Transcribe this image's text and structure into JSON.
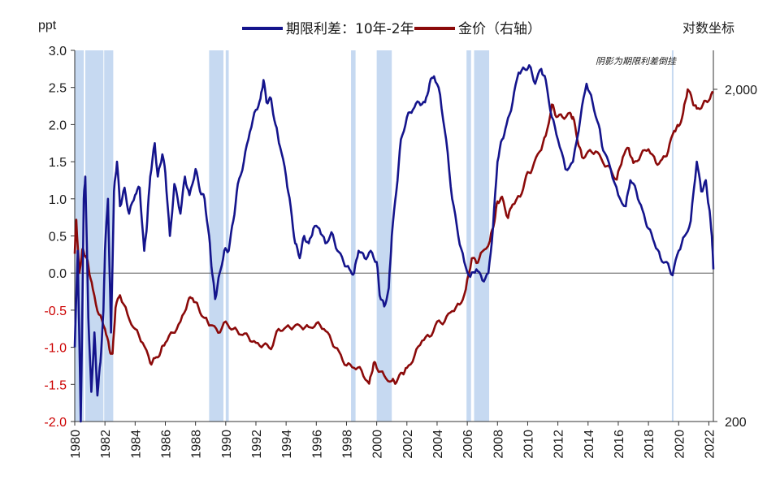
{
  "chart_data": {
    "type": "line",
    "title": "",
    "left_axis_unit": "ppt",
    "right_axis_unit": "对数坐标",
    "annotation": "阴影为期限利差倒挂",
    "xlim": [
      1980,
      2022.3
    ],
    "x_ticks": [
      "1980",
      "1982",
      "1984",
      "1986",
      "1988",
      "1990",
      "1992",
      "1994",
      "1996",
      "1998",
      "2000",
      "2002",
      "2004",
      "2006",
      "2008",
      "2010",
      "2012",
      "2014",
      "2016",
      "2018",
      "2020",
      "2022"
    ],
    "y_left": {
      "ylim": [
        -2.0,
        3.0
      ],
      "ticks": [
        "3.0",
        "2.5",
        "2.0",
        "1.5",
        "1.0",
        "0.5",
        "0.0",
        "-0.5",
        "-1.0",
        "-1.5",
        "-2.0"
      ],
      "tick_values": [
        3.0,
        2.5,
        2.0,
        1.5,
        1.0,
        0.5,
        0.0,
        -0.5,
        -1.0,
        -1.5,
        -2.0
      ]
    },
    "y_right": {
      "scale": "log",
      "ylim": [
        200,
        2620
      ],
      "ticks": [
        "2,000",
        "200"
      ],
      "tick_values": [
        2000,
        200
      ]
    },
    "shaded_periods": [
      [
        1980.0,
        1980.6
      ],
      [
        1980.7,
        1981.9
      ],
      [
        1981.95,
        1982.55
      ],
      [
        1988.9,
        1989.85
      ],
      [
        1990.0,
        1990.2
      ],
      [
        1998.3,
        1998.6
      ],
      [
        2000.0,
        2001.0
      ],
      [
        2005.95,
        2006.25
      ],
      [
        2006.45,
        2007.45
      ],
      [
        2019.55,
        2019.65
      ]
    ],
    "colors": {
      "spread": "#14148c",
      "gold": "#8b0a0a",
      "shade": "#c6d9f1",
      "axis": "#333333",
      "neg_tick": "#cc0000"
    },
    "series": [
      {
        "name": "期限利差：10年-2年",
        "axis": "left",
        "points": [
          [
            1980.0,
            -1.0
          ],
          [
            1980.2,
            0.3
          ],
          [
            1980.4,
            -2.0
          ],
          [
            1980.6,
            1.0
          ],
          [
            1980.7,
            1.3
          ],
          [
            1980.9,
            -0.6
          ],
          [
            1981.1,
            -1.6
          ],
          [
            1981.3,
            -0.8
          ],
          [
            1981.5,
            -1.65
          ],
          [
            1981.7,
            -1.2
          ],
          [
            1981.9,
            -0.5
          ],
          [
            1982.0,
            0.3
          ],
          [
            1982.2,
            1.0
          ],
          [
            1982.4,
            -0.8
          ],
          [
            1982.6,
            1.1
          ],
          [
            1982.8,
            1.5
          ],
          [
            1983.0,
            0.9
          ],
          [
            1983.3,
            1.15
          ],
          [
            1983.6,
            0.8
          ],
          [
            1984.0,
            1.05
          ],
          [
            1984.3,
            1.15
          ],
          [
            1984.6,
            0.3
          ],
          [
            1984.8,
            0.7
          ],
          [
            1985.0,
            1.3
          ],
          [
            1985.3,
            1.75
          ],
          [
            1985.5,
            1.3
          ],
          [
            1985.8,
            1.6
          ],
          [
            1986.0,
            1.35
          ],
          [
            1986.3,
            0.5
          ],
          [
            1986.6,
            1.2
          ],
          [
            1987.0,
            0.8
          ],
          [
            1987.3,
            1.3
          ],
          [
            1987.6,
            1.05
          ],
          [
            1988.0,
            1.4
          ],
          [
            1988.3,
            1.1
          ],
          [
            1988.6,
            1.0
          ],
          [
            1988.9,
            0.5
          ],
          [
            1989.1,
            0.0
          ],
          [
            1989.3,
            -0.35
          ],
          [
            1989.6,
            0.0
          ],
          [
            1989.9,
            0.3
          ],
          [
            1990.2,
            0.3
          ],
          [
            1990.5,
            0.7
          ],
          [
            1990.8,
            1.2
          ],
          [
            1991.2,
            1.5
          ],
          [
            1991.6,
            1.9
          ],
          [
            1992.0,
            2.2
          ],
          [
            1992.3,
            2.35
          ],
          [
            1992.5,
            2.6
          ],
          [
            1992.7,
            2.3
          ],
          [
            1993.0,
            2.35
          ],
          [
            1993.3,
            2.0
          ],
          [
            1993.6,
            1.7
          ],
          [
            1994.0,
            1.3
          ],
          [
            1994.3,
            0.9
          ],
          [
            1994.6,
            0.4
          ],
          [
            1994.9,
            0.2
          ],
          [
            1995.2,
            0.5
          ],
          [
            1995.5,
            0.4
          ],
          [
            1995.8,
            0.6
          ],
          [
            1996.2,
            0.6
          ],
          [
            1996.6,
            0.4
          ],
          [
            1997.0,
            0.55
          ],
          [
            1997.4,
            0.3
          ],
          [
            1997.8,
            0.15
          ],
          [
            1998.2,
            0.05
          ],
          [
            1998.5,
            0.0
          ],
          [
            1998.8,
            0.3
          ],
          [
            1999.2,
            0.2
          ],
          [
            1999.6,
            0.3
          ],
          [
            2000.0,
            0.15
          ],
          [
            2000.2,
            -0.3
          ],
          [
            2000.5,
            -0.45
          ],
          [
            2000.8,
            -0.2
          ],
          [
            2001.0,
            0.5
          ],
          [
            2001.3,
            1.1
          ],
          [
            2001.6,
            1.8
          ],
          [
            2002.0,
            2.1
          ],
          [
            2002.4,
            2.2
          ],
          [
            2002.8,
            2.3
          ],
          [
            2003.2,
            2.3
          ],
          [
            2003.5,
            2.55
          ],
          [
            2003.8,
            2.65
          ],
          [
            2004.2,
            2.4
          ],
          [
            2004.6,
            1.8
          ],
          [
            2005.0,
            1.0
          ],
          [
            2005.4,
            0.5
          ],
          [
            2005.8,
            0.15
          ],
          [
            2006.2,
            -0.05
          ],
          [
            2006.6,
            0.05
          ],
          [
            2007.0,
            -0.1
          ],
          [
            2007.4,
            0.0
          ],
          [
            2007.7,
            0.6
          ],
          [
            2008.0,
            1.5
          ],
          [
            2008.3,
            1.8
          ],
          [
            2008.6,
            2.0
          ],
          [
            2009.0,
            2.3
          ],
          [
            2009.4,
            2.7
          ],
          [
            2009.8,
            2.75
          ],
          [
            2010.1,
            2.8
          ],
          [
            2010.5,
            2.55
          ],
          [
            2010.9,
            2.75
          ],
          [
            2011.2,
            2.6
          ],
          [
            2011.6,
            2.1
          ],
          [
            2012.0,
            1.8
          ],
          [
            2012.5,
            1.4
          ],
          [
            2013.0,
            1.5
          ],
          [
            2013.5,
            2.1
          ],
          [
            2013.9,
            2.55
          ],
          [
            2014.3,
            2.3
          ],
          [
            2014.7,
            2.0
          ],
          [
            2015.0,
            1.65
          ],
          [
            2015.5,
            1.4
          ],
          [
            2016.0,
            1.05
          ],
          [
            2016.5,
            0.9
          ],
          [
            2016.8,
            1.25
          ],
          [
            2017.2,
            1.1
          ],
          [
            2017.6,
            0.85
          ],
          [
            2018.0,
            0.6
          ],
          [
            2018.4,
            0.4
          ],
          [
            2018.8,
            0.2
          ],
          [
            2019.2,
            0.15
          ],
          [
            2019.6,
            -0.03
          ],
          [
            2020.0,
            0.3
          ],
          [
            2020.4,
            0.5
          ],
          [
            2020.8,
            0.7
          ],
          [
            2021.2,
            1.5
          ],
          [
            2021.5,
            1.1
          ],
          [
            2021.8,
            1.25
          ],
          [
            2022.0,
            0.9
          ],
          [
            2022.2,
            0.5
          ],
          [
            2022.3,
            0.05
          ]
        ]
      },
      {
        "name": "金价（右轴）",
        "axis": "right",
        "points": [
          [
            1980.0,
            640
          ],
          [
            1980.1,
            810
          ],
          [
            1980.3,
            560
          ],
          [
            1980.5,
            660
          ],
          [
            1980.7,
            630
          ],
          [
            1980.9,
            590
          ],
          [
            1981.2,
            500
          ],
          [
            1981.6,
            420
          ],
          [
            1982.0,
            380
          ],
          [
            1982.3,
            330
          ],
          [
            1982.5,
            320
          ],
          [
            1982.7,
            440
          ],
          [
            1983.0,
            480
          ],
          [
            1983.5,
            420
          ],
          [
            1984.0,
            380
          ],
          [
            1984.5,
            345
          ],
          [
            1985.0,
            300
          ],
          [
            1985.3,
            310
          ],
          [
            1985.7,
            325
          ],
          [
            1986.0,
            345
          ],
          [
            1986.5,
            370
          ],
          [
            1987.0,
            400
          ],
          [
            1987.5,
            460
          ],
          [
            1987.8,
            470
          ],
          [
            1988.2,
            440
          ],
          [
            1988.6,
            410
          ],
          [
            1989.0,
            390
          ],
          [
            1989.5,
            370
          ],
          [
            1990.0,
            400
          ],
          [
            1990.5,
            380
          ],
          [
            1991.0,
            365
          ],
          [
            1991.5,
            360
          ],
          [
            1992.0,
            345
          ],
          [
            1992.5,
            340
          ],
          [
            1993.0,
            330
          ],
          [
            1993.5,
            380
          ],
          [
            1994.0,
            385
          ],
          [
            1994.5,
            385
          ],
          [
            1995.0,
            385
          ],
          [
            1995.5,
            385
          ],
          [
            1996.0,
            395
          ],
          [
            1996.5,
            380
          ],
          [
            1997.0,
            350
          ],
          [
            1997.5,
            325
          ],
          [
            1998.0,
            295
          ],
          [
            1998.5,
            290
          ],
          [
            1999.0,
            285
          ],
          [
            1999.5,
            260
          ],
          [
            1999.8,
            300
          ],
          [
            2000.0,
            290
          ],
          [
            2000.5,
            275
          ],
          [
            2001.0,
            265
          ],
          [
            2001.3,
            262
          ],
          [
            2001.7,
            280
          ],
          [
            2002.0,
            290
          ],
          [
            2002.5,
            315
          ],
          [
            2003.0,
            350
          ],
          [
            2003.5,
            360
          ],
          [
            2004.0,
            400
          ],
          [
            2004.5,
            400
          ],
          [
            2005.0,
            430
          ],
          [
            2005.5,
            450
          ],
          [
            2005.9,
            500
          ],
          [
            2006.3,
            620
          ],
          [
            2006.6,
            600
          ],
          [
            2007.0,
            650
          ],
          [
            2007.5,
            700
          ],
          [
            2007.8,
            800
          ],
          [
            2008.0,
            920
          ],
          [
            2008.3,
            950
          ],
          [
            2008.7,
            820
          ],
          [
            2009.0,
            900
          ],
          [
            2009.5,
            950
          ],
          [
            2009.9,
            1100
          ],
          [
            2010.3,
            1150
          ],
          [
            2010.8,
            1300
          ],
          [
            2011.2,
            1450
          ],
          [
            2011.6,
            1800
          ],
          [
            2011.9,
            1650
          ],
          [
            2012.3,
            1650
          ],
          [
            2012.8,
            1700
          ],
          [
            2013.0,
            1650
          ],
          [
            2013.3,
            1400
          ],
          [
            2013.6,
            1250
          ],
          [
            2014.0,
            1300
          ],
          [
            2014.5,
            1300
          ],
          [
            2015.0,
            1200
          ],
          [
            2015.5,
            1150
          ],
          [
            2015.9,
            1070
          ],
          [
            2016.3,
            1250
          ],
          [
            2016.7,
            1330
          ],
          [
            2017.0,
            1200
          ],
          [
            2017.5,
            1270
          ],
          [
            2018.0,
            1320
          ],
          [
            2018.5,
            1200
          ],
          [
            2018.9,
            1230
          ],
          [
            2019.3,
            1300
          ],
          [
            2019.7,
            1500
          ],
          [
            2020.0,
            1550
          ],
          [
            2020.3,
            1700
          ],
          [
            2020.6,
            2000
          ],
          [
            2020.9,
            1850
          ],
          [
            2021.2,
            1750
          ],
          [
            2021.6,
            1800
          ],
          [
            2022.0,
            1850
          ],
          [
            2022.3,
            1950
          ]
        ]
      }
    ]
  }
}
